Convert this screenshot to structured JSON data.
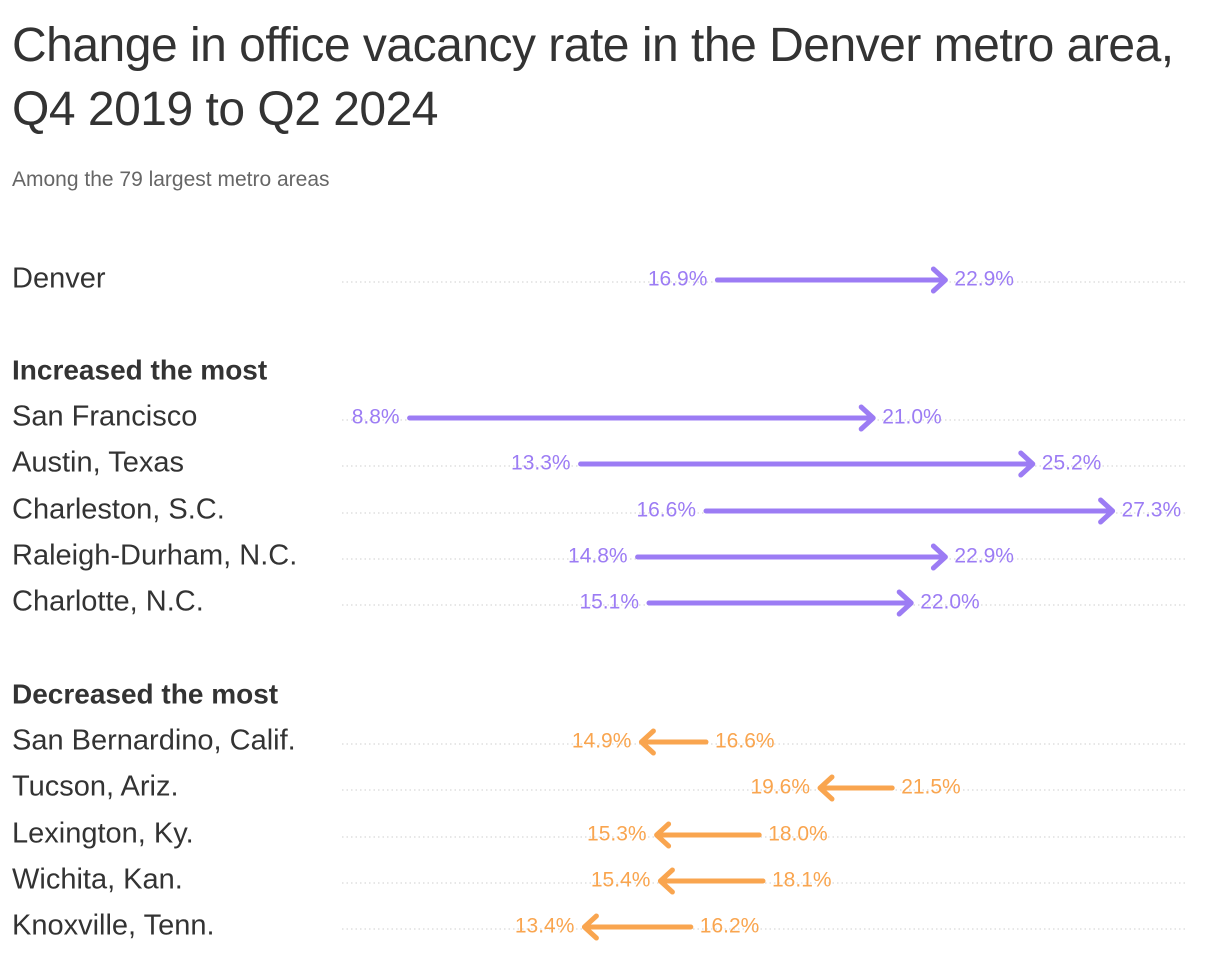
{
  "title": "Change in office vacancy rate in the Denver metro area, Q4 2019 to Q2 2024",
  "subtitle": "Among the 79 largest metro areas",
  "colors": {
    "increase": "#9c7cf4",
    "decrease": "#f9a54f",
    "text": "#333333",
    "muted": "#666666",
    "guide": "#cfcfcf"
  },
  "chart_data": {
    "type": "arrow-dot-plot",
    "xlim": [
      8.8,
      27.3
    ],
    "grid": false,
    "value_format": "{v}%",
    "groups": [
      {
        "label": "",
        "rows": [
          {
            "name": "Denver",
            "from": "16.9%",
            "to": "22.9%",
            "from_value": 16.9,
            "to_value": 22.9,
            "direction": "increase"
          }
        ]
      },
      {
        "label": "Increased the most",
        "rows": [
          {
            "name": "San Francisco",
            "from": "8.8%",
            "to": "21.0%",
            "from_value": 8.8,
            "to_value": 21.0,
            "direction": "increase"
          },
          {
            "name": "Austin, Texas",
            "from": "13.3%",
            "to": "25.2%",
            "from_value": 13.3,
            "to_value": 25.2,
            "direction": "increase"
          },
          {
            "name": "Charleston, S.C.",
            "from": "16.6%",
            "to": "27.3%",
            "from_value": 16.6,
            "to_value": 27.3,
            "direction": "increase"
          },
          {
            "name": "Raleigh-Durham, N.C.",
            "from": "14.8%",
            "to": "22.9%",
            "from_value": 14.8,
            "to_value": 22.9,
            "direction": "increase"
          },
          {
            "name": "Charlotte, N.C.",
            "from": "15.1%",
            "to": "22.0%",
            "from_value": 15.1,
            "to_value": 22.0,
            "direction": "increase"
          }
        ]
      },
      {
        "label": "Decreased the most",
        "rows": [
          {
            "name": "San Bernardino, Calif.",
            "from": "16.6%",
            "to": "14.9%",
            "from_value": 16.6,
            "to_value": 14.9,
            "direction": "decrease"
          },
          {
            "name": "Tucson, Ariz.",
            "from": "21.5%",
            "to": "19.6%",
            "from_value": 21.5,
            "to_value": 19.6,
            "direction": "decrease"
          },
          {
            "name": "Lexington, Ky.",
            "from": "18.0%",
            "to": "15.3%",
            "from_value": 18.0,
            "to_value": 15.3,
            "direction": "decrease"
          },
          {
            "name": "Wichita, Kan.",
            "from": "18.1%",
            "to": "15.4%",
            "from_value": 18.1,
            "to_value": 15.4,
            "direction": "decrease"
          },
          {
            "name": "Knoxville, Tenn.",
            "from": "16.2%",
            "to": "13.4%",
            "from_value": 16.2,
            "to_value": 13.4,
            "direction": "decrease"
          }
        ]
      }
    ]
  }
}
